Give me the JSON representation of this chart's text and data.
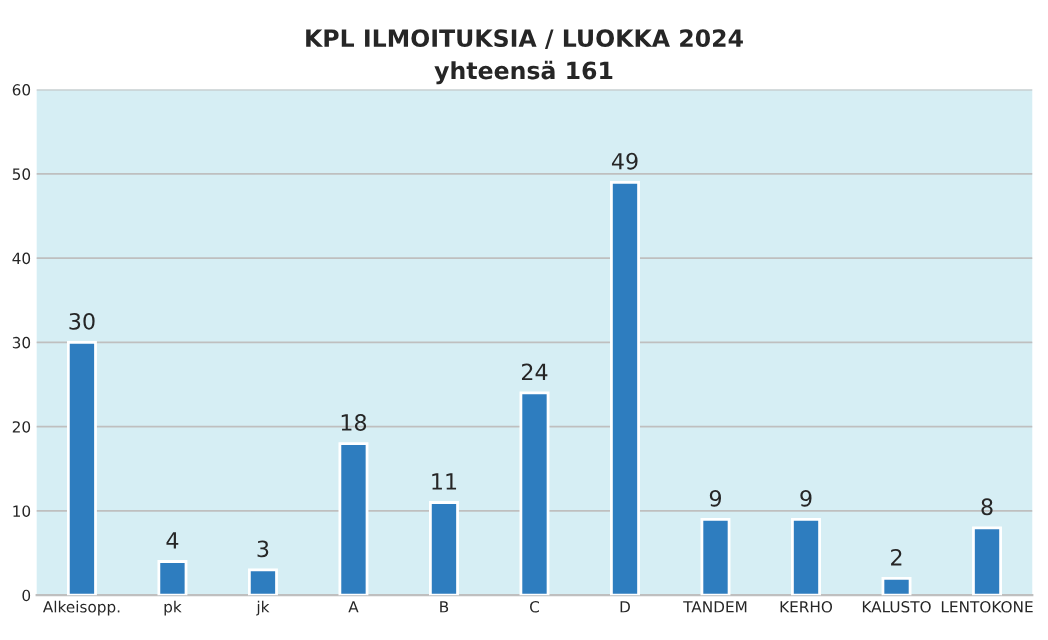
{
  "chart_data": {
    "type": "bar",
    "title": "KPL ILMOITUKSIA / LUOKKA 2024",
    "subtitle": "yhteensä 161",
    "categories": [
      "Alkeisopp.",
      "pk",
      "jk",
      "A",
      "B",
      "C",
      "D",
      "TANDEM",
      "KERHO",
      "KALUSTO",
      "LENTOKONE"
    ],
    "values": [
      30,
      4,
      3,
      18,
      11,
      24,
      49,
      9,
      9,
      2,
      8
    ],
    "color": "#2e7dbf",
    "ylim": [
      0,
      60
    ],
    "yticks": [
      0,
      10,
      20,
      30,
      40,
      50,
      60
    ],
    "grid": "y",
    "data_labels": true
  }
}
